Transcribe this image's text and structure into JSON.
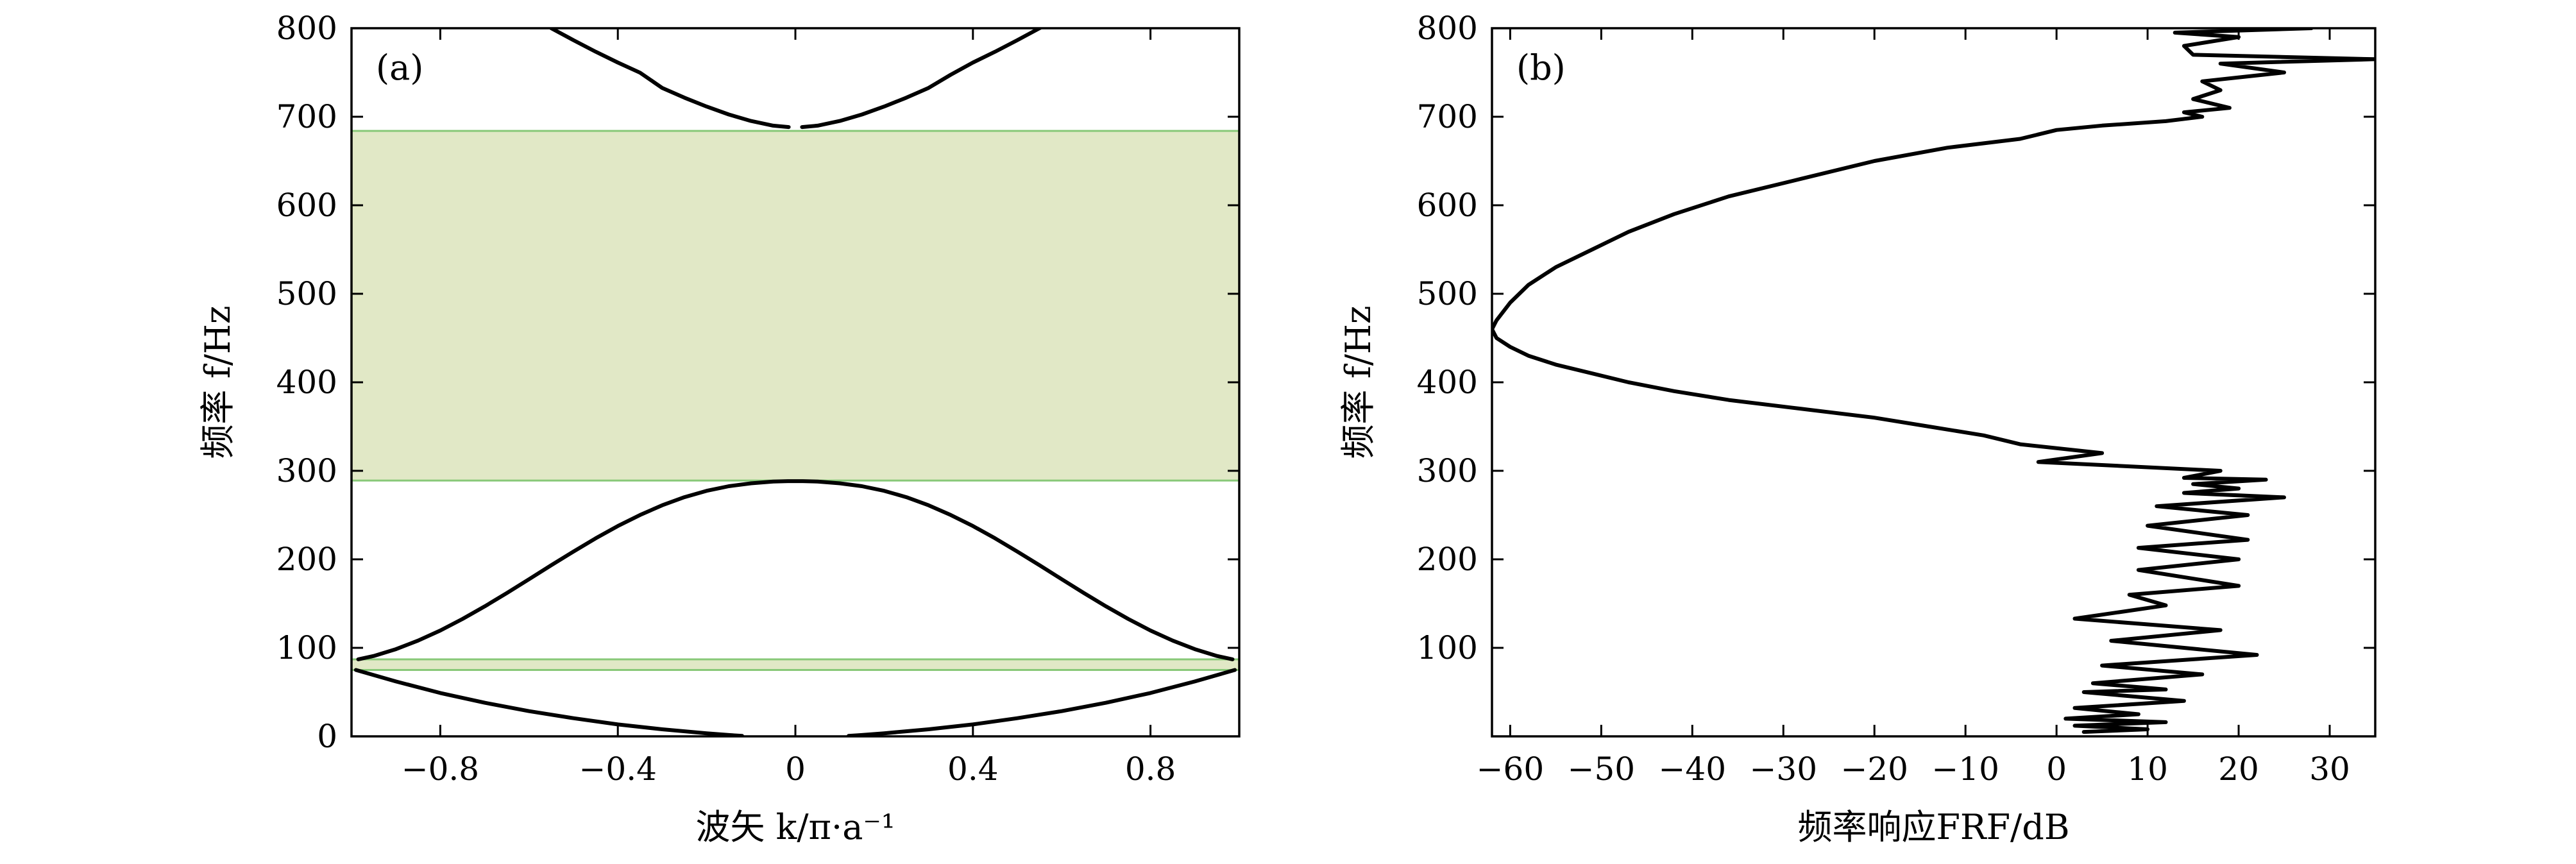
{
  "chart_data": [
    {
      "type": "line",
      "panel_label": "(a)",
      "xlabel": "波矢 k/π·a⁻¹",
      "ylabel": "频率 f/Hz",
      "xlim": [
        -1,
        1
      ],
      "ylim": [
        0,
        800
      ],
      "xticks": [
        -0.8,
        -0.4,
        0,
        0.4,
        0.8
      ],
      "xtick_labels": [
        "−0.8",
        "−0.4",
        "0",
        "0.4",
        "0.8"
      ],
      "yticks": [
        0,
        100,
        200,
        300,
        400,
        500,
        600,
        700,
        800
      ],
      "ytick_labels": [
        "0",
        "100",
        "200",
        "300",
        "400",
        "500",
        "600",
        "700",
        "800"
      ],
      "grid": false,
      "band_gaps": [
        {
          "f_low": 75,
          "f_high": 87,
          "color": "#e1e8c6",
          "edge_color": "#88c878"
        },
        {
          "f_low": 289,
          "f_high": 684,
          "color": "#e1e8c6",
          "edge_color": "#88c878"
        }
      ],
      "line_color": "#000000",
      "series": [
        {
          "x": [
            -0.9848,
            -0.95,
            -0.9,
            -0.85,
            -0.8,
            -0.75,
            -0.7,
            -0.65,
            -0.6,
            -0.55,
            -0.5,
            -0.45,
            -0.4,
            -0.35,
            -0.3,
            -0.25,
            -0.2,
            -0.15,
            -0.1,
            -0.05,
            -0.017,
            0.017,
            0.05,
            0.1,
            0.15,
            0.2,
            0.25,
            0.3,
            0.35,
            0.4,
            0.45,
            0.5,
            0.55,
            0.6,
            0.65,
            0.7,
            0.75,
            0.8,
            0.85,
            0.9,
            0.95,
            0.9848
          ],
          "y": [
            87,
            90.8,
            98.5,
            108.2,
            119.6,
            132.6,
            146.8,
            161.9,
            177.5,
            193.3,
            208.8,
            223.7,
            237.6,
            250.1,
            261.1,
            270.2,
            277.4,
            282.6,
            285.9,
            287.9,
            288.3,
            288.3,
            287.9,
            285.9,
            282.6,
            277.4,
            270.2,
            261.1,
            250.1,
            237.6,
            223.7,
            208.8,
            193.3,
            177.5,
            161.9,
            146.8,
            132.6,
            119.6,
            108.2,
            98.5,
            90.8,
            87
          ]
        },
        {
          "x": [
            -0.99,
            -0.9,
            -0.8,
            -0.7,
            -0.6,
            -0.5,
            -0.4,
            -0.3,
            -0.2,
            -0.15,
            -0.12
          ],
          "y": [
            75,
            62,
            49,
            38,
            28.5,
            20.5,
            13.5,
            8,
            3.5,
            1.5,
            0.5
          ]
        },
        {
          "x": [
            0.12,
            0.15,
            0.2,
            0.3,
            0.4,
            0.5,
            0.6,
            0.7,
            0.8,
            0.9,
            0.99
          ],
          "y": [
            0.5,
            1.5,
            3.5,
            8,
            13.5,
            20.5,
            28.5,
            38,
            49,
            62,
            75
          ]
        },
        {
          "x": [
            -0.55,
            -0.5,
            -0.45,
            -0.4,
            -0.35,
            -0.3,
            -0.25,
            -0.2,
            -0.15,
            -0.1,
            -0.05,
            -0.015
          ],
          "y": [
            800,
            786.5,
            773.5,
            761.2,
            749.8,
            732.5,
            721.5,
            711.5,
            702.5,
            695.2,
            689.9,
            688.3
          ]
        },
        {
          "x": [
            0.015,
            0.05,
            0.1,
            0.15,
            0.2,
            0.25,
            0.3,
            0.35,
            0.4,
            0.45,
            0.5,
            0.55,
            0.57
          ],
          "y": [
            688.3,
            689.9,
            695.2,
            702.5,
            711.5,
            721.5,
            732.5,
            747.5,
            761.2,
            773.5,
            786.5,
            800,
            806
          ]
        }
      ]
    },
    {
      "type": "line",
      "panel_label": "(b)",
      "xlabel": "频率响应FRF/dB",
      "ylabel": "频率 f/Hz",
      "xlim": [
        -62,
        35
      ],
      "ylim": [
        0,
        800
      ],
      "xticks": [
        -60,
        -50,
        -40,
        -30,
        -20,
        -10,
        0,
        10,
        20,
        30
      ],
      "xtick_labels": [
        "−60",
        "−50",
        "−40",
        "−30",
        "−20",
        "−10",
        "0",
        "10",
        "20",
        "30"
      ],
      "yticks": [
        100,
        200,
        300,
        400,
        500,
        600,
        700,
        800
      ],
      "ytick_labels": [
        "100",
        "200",
        "300",
        "400",
        "500",
        "600",
        "700",
        "800"
      ],
      "grid": false,
      "line_color": "#000000",
      "series": [
        {
          "x": [
            3,
            10,
            2,
            12,
            1,
            9,
            2,
            14,
            3,
            12,
            4,
            16,
            5,
            22,
            6,
            18,
            2,
            12,
            8,
            20,
            9,
            20,
            9,
            21,
            10,
            21,
            11,
            25,
            14,
            20,
            15,
            23,
            14,
            18,
            -2,
            5,
            -4,
            -8,
            -14,
            -20,
            -28,
            -36,
            -42,
            -47,
            -51,
            -55,
            -58,
            -60,
            -61.5,
            -62,
            -61.5,
            -60,
            -58,
            -55,
            -51,
            -47,
            -42,
            -36,
            -28,
            -20,
            -12,
            -4,
            0,
            5,
            12,
            16,
            14,
            19,
            15,
            18,
            16,
            25,
            18,
            35,
            15,
            14,
            20,
            13,
            28
          ],
          "y": [
            5,
            8,
            12,
            16,
            20,
            25,
            32,
            40,
            50,
            53,
            60,
            70,
            80,
            92,
            108,
            120,
            133,
            148,
            160,
            170,
            188,
            200,
            213,
            222,
            238,
            250,
            260,
            270,
            275,
            280,
            285,
            290,
            292,
            300,
            310,
            320,
            330,
            340,
            350,
            360,
            370,
            380,
            390,
            400,
            410,
            420,
            430,
            440,
            450,
            460,
            470,
            490,
            510,
            530,
            550,
            570,
            590,
            610,
            630,
            650,
            665,
            675,
            685,
            690,
            695,
            700,
            705,
            710,
            720,
            730,
            740,
            750,
            760,
            765,
            770,
            780,
            790,
            795,
            800
          ]
        }
      ]
    }
  ]
}
